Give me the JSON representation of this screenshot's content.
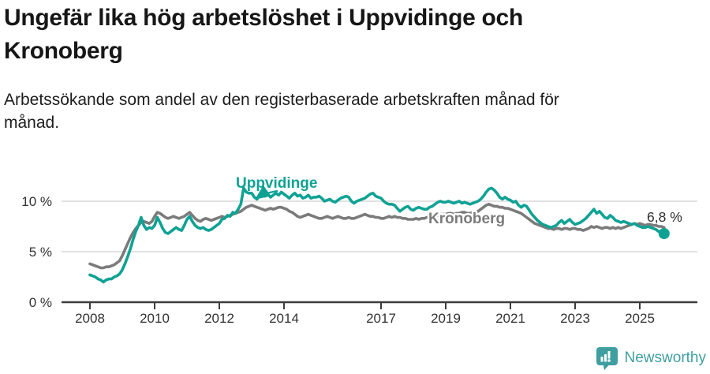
{
  "header": {
    "title_line1": "Ungefär lika hög arbetslöshet i Uppvidinge och",
    "title_line2": "Kronoberg",
    "subtitle_line1": "Arbetssökande som andel av den registerbaserade arbetskraften månad för",
    "subtitle_line2": "månad."
  },
  "chart_data": {
    "type": "line",
    "title": "Ungefär lika hög arbetslöshet i Uppvidinge och Kronoberg",
    "subtitle": "Arbetssökande som andel av den registerbaserade arbetskraften månad för månad.",
    "x_start_year": 2008.0,
    "x_step_years": 0.0833333,
    "x_end_year": 2025.75,
    "x_ticks": [
      2008,
      2010,
      2012,
      2014,
      2017,
      2019,
      2021,
      2023,
      2025
    ],
    "y_ticks": [
      {
        "value": 0,
        "label": "0 %"
      },
      {
        "value": 5,
        "label": "5 %"
      },
      {
        "value": 10,
        "label": "10 %"
      }
    ],
    "ylim": [
      0,
      11.8
    ],
    "xlim": [
      2007.15,
      2026.8
    ],
    "grid": "horizontal",
    "legend_position": "inline-labels",
    "end_label": "6,8 %",
    "end_value": 6.8,
    "series": [
      {
        "name": "Uppvidinge",
        "color": "#0fa294",
        "values": [
          2.7,
          2.6,
          2.5,
          2.3,
          2.2,
          2.0,
          2.2,
          2.3,
          2.3,
          2.5,
          2.6,
          2.8,
          3.2,
          3.8,
          4.5,
          5.3,
          6.2,
          7.0,
          7.6,
          8.4,
          7.6,
          7.2,
          7.4,
          7.3,
          7.6,
          8.4,
          7.9,
          7.3,
          6.9,
          6.8,
          7.0,
          7.2,
          7.4,
          7.2,
          7.1,
          7.6,
          8.2,
          8.5,
          8.0,
          7.6,
          7.4,
          7.3,
          7.4,
          7.2,
          7.1,
          7.2,
          7.4,
          7.6,
          7.8,
          8.2,
          8.3,
          8.6,
          8.5,
          8.9,
          8.8,
          9.2,
          9.7,
          11.3,
          10.9,
          10.8,
          10.8,
          10.4,
          10.2,
          10.6,
          10.9,
          10.5,
          10.7,
          10.4,
          10.6,
          10.8,
          10.6,
          10.9,
          10.7,
          10.5,
          10.3,
          10.6,
          10.8,
          10.5,
          10.6,
          10.3,
          10.4,
          10.6,
          10.3,
          10.4,
          10.4,
          10.5,
          10.3,
          10.0,
          10.1,
          10.2,
          10.0,
          9.9,
          10.1,
          10.3,
          10.4,
          10.5,
          10.4,
          10.0,
          9.8,
          10.0,
          10.1,
          10.2,
          10.3,
          10.5,
          10.7,
          10.8,
          10.5,
          10.4,
          10.3,
          10.0,
          9.8,
          9.7,
          9.7,
          9.6,
          9.3,
          9.0,
          9.2,
          9.4,
          9.5,
          9.2,
          9.1,
          9.3,
          9.4,
          9.3,
          9.2,
          9.2,
          9.4,
          9.5,
          9.7,
          9.9,
          10.0,
          9.9,
          9.9,
          10.0,
          9.9,
          9.8,
          9.9,
          10.0,
          9.8,
          9.9,
          9.8,
          9.7,
          9.8,
          9.9,
          10.0,
          10.2,
          10.5,
          10.9,
          11.2,
          11.3,
          11.1,
          10.8,
          10.4,
          10.2,
          10.4,
          10.2,
          10.1,
          9.9,
          10.0,
          9.6,
          9.4,
          9.6,
          9.5,
          9.1,
          8.7,
          8.4,
          8.1,
          7.9,
          7.7,
          7.6,
          7.5,
          7.4,
          7.5,
          7.6,
          7.9,
          8.1,
          7.8,
          8.0,
          8.2,
          7.9,
          7.7,
          7.8,
          7.9,
          8.1,
          8.3,
          8.6,
          8.9,
          9.2,
          8.8,
          9.0,
          8.7,
          8.4,
          8.3,
          8.6,
          8.4,
          8.1,
          8.0,
          7.9,
          8.0,
          7.9,
          7.8,
          7.7,
          7.8,
          7.6,
          7.5,
          7.4,
          7.4,
          7.5,
          7.4,
          7.3,
          7.2,
          7.0,
          6.9,
          6.8
        ]
      },
      {
        "name": "Kronoberg",
        "color": "#7b7b7b",
        "values": [
          3.8,
          3.7,
          3.6,
          3.5,
          3.4,
          3.4,
          3.5,
          3.5,
          3.6,
          3.7,
          3.9,
          4.1,
          4.6,
          5.2,
          5.8,
          6.4,
          6.9,
          7.3,
          7.6,
          7.9,
          8.0,
          7.9,
          7.8,
          8.0,
          8.5,
          8.9,
          8.8,
          8.6,
          8.4,
          8.3,
          8.4,
          8.5,
          8.4,
          8.3,
          8.4,
          8.5,
          8.7,
          8.9,
          8.6,
          8.3,
          8.1,
          8.0,
          8.2,
          8.3,
          8.2,
          8.1,
          8.2,
          8.3,
          8.4,
          8.5,
          8.4,
          8.5,
          8.6,
          8.7,
          8.8,
          8.9,
          9.0,
          9.2,
          9.4,
          9.5,
          9.6,
          9.5,
          9.4,
          9.3,
          9.2,
          9.1,
          9.2,
          9.3,
          9.2,
          9.3,
          9.4,
          9.4,
          9.3,
          9.2,
          9.0,
          8.9,
          8.7,
          8.5,
          8.4,
          8.5,
          8.6,
          8.7,
          8.6,
          8.5,
          8.4,
          8.3,
          8.3,
          8.4,
          8.5,
          8.4,
          8.3,
          8.4,
          8.5,
          8.4,
          8.3,
          8.3,
          8.4,
          8.3,
          8.3,
          8.4,
          8.5,
          8.6,
          8.7,
          8.6,
          8.5,
          8.5,
          8.4,
          8.4,
          8.3,
          8.3,
          8.4,
          8.5,
          8.4,
          8.5,
          8.4,
          8.4,
          8.3,
          8.3,
          8.2,
          8.2,
          8.2,
          8.3,
          8.2,
          8.3,
          8.3,
          8.4,
          8.5,
          8.5,
          8.6,
          8.6,
          8.7,
          8.7,
          8.7,
          8.8,
          8.8,
          8.7,
          8.8,
          8.8,
          8.9,
          8.9,
          8.8,
          8.8,
          8.9,
          8.9,
          9.0,
          9.2,
          9.4,
          9.6,
          9.7,
          9.6,
          9.5,
          9.5,
          9.4,
          9.4,
          9.3,
          9.3,
          9.2,
          9.1,
          9.0,
          8.9,
          8.8,
          8.6,
          8.4,
          8.2,
          8.0,
          7.8,
          7.7,
          7.6,
          7.5,
          7.4,
          7.3,
          7.3,
          7.2,
          7.3,
          7.3,
          7.2,
          7.3,
          7.3,
          7.2,
          7.3,
          7.3,
          7.2,
          7.2,
          7.1,
          7.2,
          7.3,
          7.5,
          7.4,
          7.5,
          7.4,
          7.3,
          7.4,
          7.4,
          7.3,
          7.4,
          7.3,
          7.4,
          7.3,
          7.4,
          7.5,
          7.6,
          7.7,
          7.8,
          7.7,
          7.8,
          7.7,
          7.6,
          7.7,
          7.7,
          7.6,
          7.6,
          7.5,
          7.5,
          7.4
        ]
      }
    ]
  },
  "footer": {
    "brand": "Newsworthy",
    "brand_color": "#3f9fa0"
  }
}
